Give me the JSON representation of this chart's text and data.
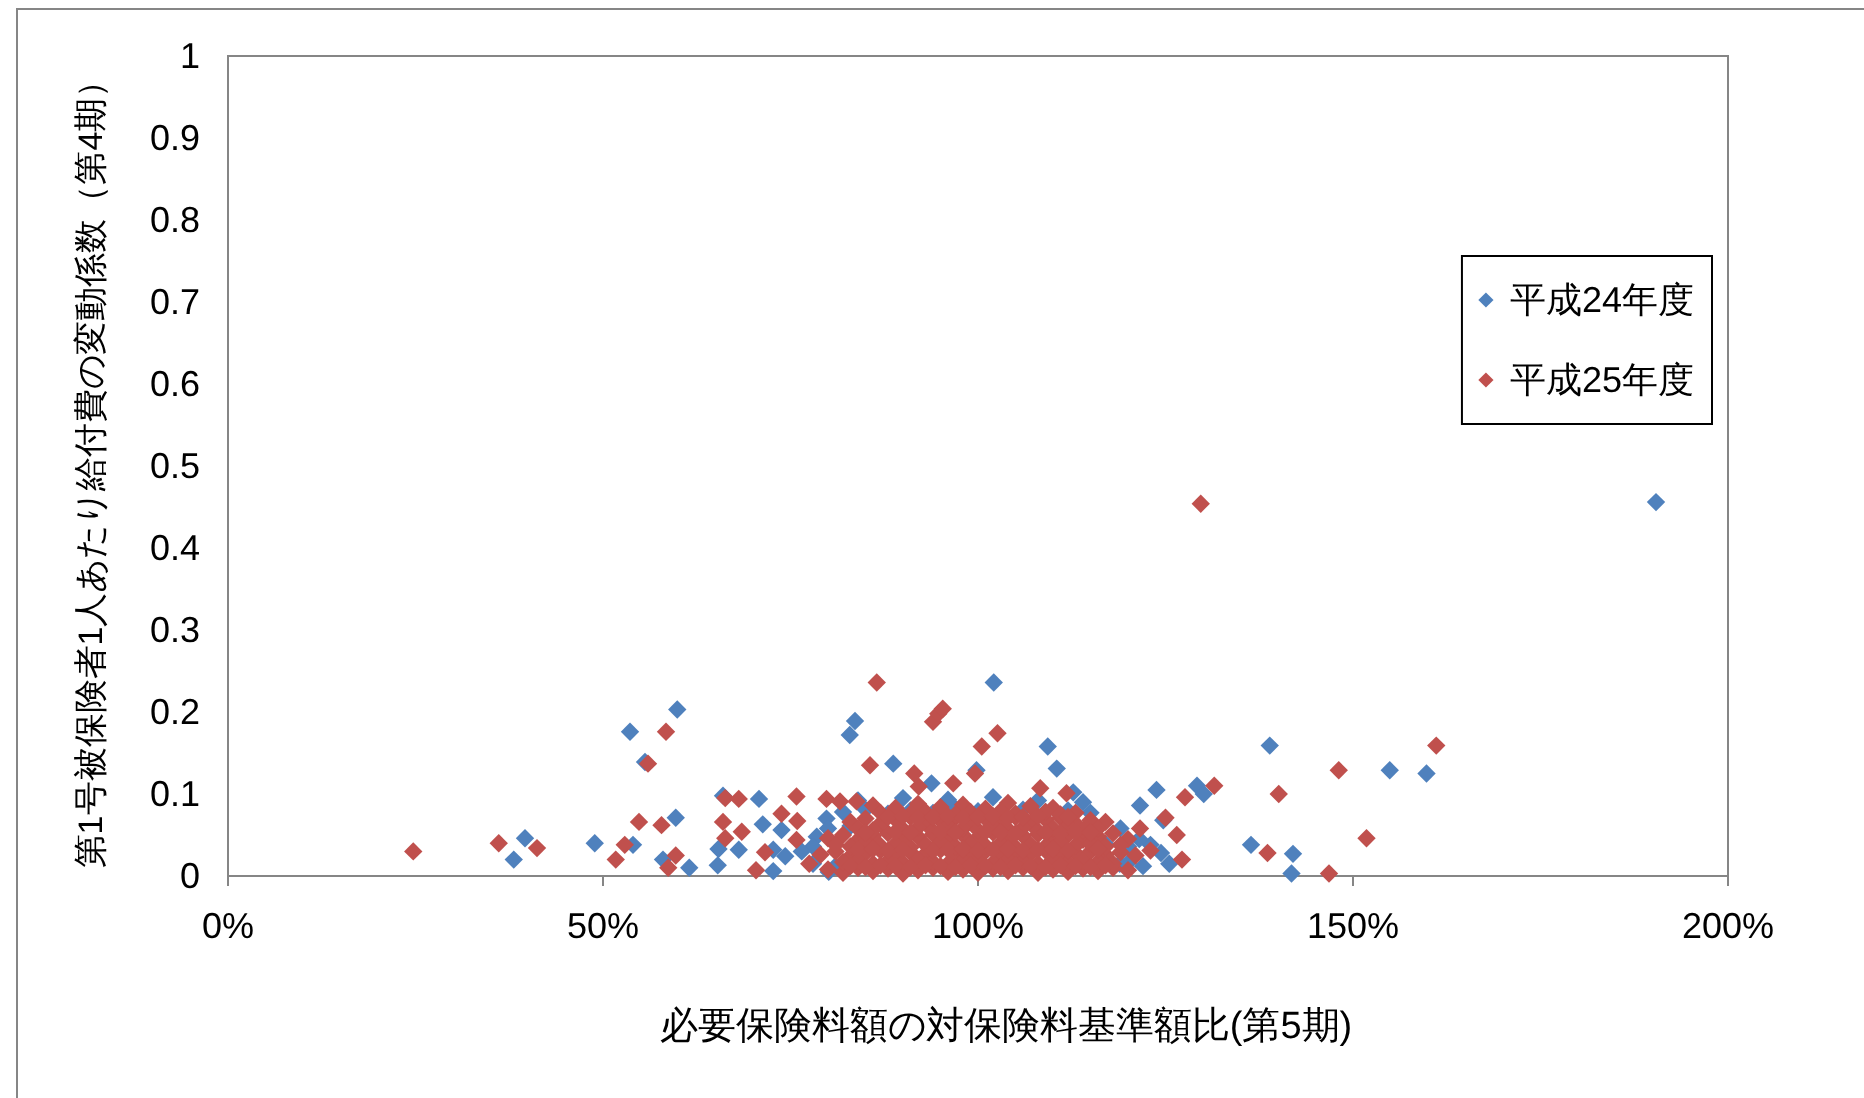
{
  "chart_data": {
    "type": "scatter",
    "xlabel": "必要保険料額の対保険料基準額比(第5期)",
    "ylabel": "第1号被保険者1人あたり給付費の変動係数（第4期）",
    "xlim": [
      0,
      200
    ],
    "xticks": [
      {
        "value": 0,
        "label": "0%"
      },
      {
        "value": 50,
        "label": "50%"
      },
      {
        "value": 100,
        "label": "100%"
      },
      {
        "value": 150,
        "label": "150%"
      },
      {
        "value": 200,
        "label": "200%"
      }
    ],
    "ylim": [
      0,
      1
    ],
    "yticks": [
      0,
      0.1,
      0.2,
      0.3,
      0.4,
      0.5,
      0.6,
      0.7,
      0.8,
      0.9,
      1
    ],
    "legend": "right",
    "marker": "diamond",
    "series": [
      {
        "name": "平成24年度",
        "color": "#4f81bd",
        "x": [
          38.1,
          39.6,
          48.9,
          53.6,
          54,
          55.6,
          58,
          59.7,
          59.9,
          61.5,
          65.3,
          65.4,
          66,
          68.1,
          70.8,
          71.3,
          72.7,
          72.7,
          73.8,
          74.3,
          78.5,
          79.8,
          80.1,
          82.9,
          83.6,
          88.7,
          93.8,
          99.8,
          102.1,
          109.3,
          110.5,
          112.7,
          118.9,
          121.6,
          123.8,
          124.4,
          124.7,
          129.2,
          130.1,
          136.4,
          138.9,
          142,
          141.8,
          154.9,
          159.8,
          190.4,
          78,
          81,
          120,
          122,
          78,
          117,
          120,
          123,
          80,
          83,
          119,
          82,
          85,
          88,
          91,
          94,
          97,
          100,
          106,
          109,
          112,
          115,
          84,
          90,
          96,
          102,
          108,
          114,
          76.5,
          121.5,
          125.5
        ],
        "values": [
          0.02,
          0.046,
          0.04,
          0.176,
          0.038,
          0.139,
          0.02,
          0.071,
          0.203,
          0.01,
          0.013,
          0.033,
          0.098,
          0.032,
          0.094,
          0.063,
          0.032,
          0.006,
          0.056,
          0.024,
          0.048,
          0.07,
          0.005,
          0.172,
          0.189,
          0.137,
          0.113,
          0.129,
          0.236,
          0.158,
          0.131,
          0.102,
          0.015,
          0.086,
          0.105,
          0.028,
          0.068,
          0.11,
          0.1,
          0.038,
          0.159,
          0.027,
          0.003,
          0.129,
          0.125,
          0.456,
          0.015,
          0.012,
          0.016,
          0.012,
          0.036,
          0.039,
          0.036,
          0.038,
          0.058,
          0.061,
          0.058,
          0.078,
          0.081,
          0.076,
          0.08,
          0.077,
          0.082,
          0.079,
          0.081,
          0.078,
          0.08,
          0.077,
          0.092,
          0.095,
          0.093,
          0.096,
          0.092,
          0.09,
          0.03,
          0.045,
          0.015
        ]
      },
      {
        "name": "平成25年度",
        "color": "#c0504d",
        "x": [
          24.7,
          36.1,
          41.2,
          51.7,
          52.9,
          54.8,
          56,
          57.8,
          58.4,
          58.7,
          59.7,
          66.3,
          66,
          66.3,
          68.1,
          68.5,
          70.4,
          71.6,
          73.8,
          75.8,
          75.9,
          75.8,
          77.5,
          79.8,
          81.6,
          83.8,
          85.6,
          86.5,
          91.5,
          92.1,
          94,
          94.7,
          95.3,
          96.7,
          99.6,
          100.5,
          102.6,
          108.3,
          111.8,
          121.6,
          125,
          126.5,
          127.2,
          127.6,
          131.5,
          129.7,
          138.6,
          140.1,
          146.8,
          148.1,
          151.8,
          161.1,
          80,
          82,
          84,
          86,
          88,
          90,
          92,
          94,
          96,
          98,
          100,
          102,
          104,
          106,
          108,
          110,
          112,
          114,
          116,
          118,
          120,
          79,
          81,
          83,
          85,
          87,
          89,
          91,
          93,
          95,
          97,
          99,
          101,
          103,
          105,
          107,
          109,
          111,
          113,
          115,
          117,
          119,
          121,
          123,
          80,
          82,
          84,
          86,
          88,
          90,
          92,
          94,
          96,
          98,
          100,
          102,
          104,
          106,
          108,
          110,
          112,
          114,
          116,
          118,
          120,
          83,
          85,
          87,
          89,
          91,
          93,
          95,
          97,
          99,
          101,
          103,
          105,
          107,
          109,
          111,
          113,
          115,
          117,
          86,
          89,
          92,
          95,
          98,
          101,
          104,
          107,
          110,
          82,
          84,
          86,
          88,
          90,
          92,
          94,
          96,
          98,
          100,
          102,
          104,
          106,
          108,
          110,
          112,
          114,
          116,
          118,
          81,
          83,
          85,
          87,
          89,
          91,
          93,
          95,
          97,
          99,
          101,
          103,
          105,
          107,
          109,
          111,
          113,
          115,
          117,
          119,
          84,
          86,
          90,
          92,
          94,
          96,
          98,
          100,
          102,
          104,
          106,
          108,
          110,
          112,
          114,
          116,
          87,
          91,
          93,
          97,
          99,
          103,
          105,
          109,
          111,
          113,
          83,
          85,
          87,
          89,
          91,
          93,
          95,
          97,
          99,
          101,
          103,
          105,
          107,
          109,
          111,
          113,
          115,
          117,
          84,
          86,
          88,
          90,
          94,
          96,
          98,
          100,
          102,
          104,
          106,
          108,
          110,
          112,
          116,
          85,
          89,
          91,
          95,
          97,
          101,
          103,
          105,
          109,
          111,
          113,
          115,
          88,
          90,
          92,
          94,
          96,
          98,
          100,
          102,
          104,
          106,
          108,
          112
        ],
        "values": [
          0.03,
          0.04,
          0.034,
          0.02,
          0.038,
          0.066,
          0.137,
          0.062,
          0.176,
          0.01,
          0.025,
          0.095,
          0.066,
          0.046,
          0.094,
          0.054,
          0.007,
          0.029,
          0.076,
          0.097,
          0.067,
          0.044,
          0.015,
          0.094,
          0.091,
          0.091,
          0.135,
          0.236,
          0.125,
          0.109,
          0.188,
          0.198,
          0.204,
          0.113,
          0.125,
          0.158,
          0.174,
          0.107,
          0.101,
          0.058,
          0.071,
          0.05,
          0.02,
          0.096,
          0.11,
          0.454,
          0.028,
          0.1,
          0.003,
          0.129,
          0.046,
          0.159,
          0.008,
          0.004,
          0.01,
          0.006,
          0.009,
          0.003,
          0.007,
          0.01,
          0.005,
          0.008,
          0.004,
          0.009,
          0.006,
          0.01,
          0.004,
          0.008,
          0.005,
          0.009,
          0.006,
          0.01,
          0.007,
          0.026,
          0.03,
          0.024,
          0.028,
          0.031,
          0.025,
          0.029,
          0.027,
          0.032,
          0.024,
          0.028,
          0.03,
          0.025,
          0.029,
          0.027,
          0.031,
          0.024,
          0.028,
          0.03,
          0.026,
          0.029,
          0.025,
          0.031,
          0.046,
          0.05,
          0.044,
          0.049,
          0.052,
          0.045,
          0.048,
          0.051,
          0.046,
          0.05,
          0.047,
          0.053,
          0.045,
          0.049,
          0.051,
          0.046,
          0.05,
          0.044,
          0.048,
          0.052,
          0.045,
          0.066,
          0.07,
          0.064,
          0.069,
          0.072,
          0.065,
          0.068,
          0.071,
          0.066,
          0.07,
          0.067,
          0.072,
          0.065,
          0.069,
          0.071,
          0.064,
          0.068,
          0.066,
          0.086,
          0.083,
          0.088,
          0.084,
          0.087,
          0.082,
          0.089,
          0.085,
          0.083,
          0.017,
          0.019,
          0.015,
          0.018,
          0.016,
          0.02,
          0.017,
          0.015,
          0.019,
          0.018,
          0.016,
          0.02,
          0.017,
          0.015,
          0.019,
          0.016,
          0.018,
          0.017,
          0.015,
          0.038,
          0.036,
          0.04,
          0.037,
          0.039,
          0.035,
          0.038,
          0.041,
          0.036,
          0.039,
          0.037,
          0.04,
          0.035,
          0.038,
          0.036,
          0.041,
          0.037,
          0.039,
          0.036,
          0.038,
          0.058,
          0.056,
          0.057,
          0.059,
          0.055,
          0.061,
          0.058,
          0.056,
          0.06,
          0.057,
          0.059,
          0.055,
          0.058,
          0.061,
          0.056,
          0.058,
          0.077,
          0.076,
          0.078,
          0.075,
          0.078,
          0.079,
          0.076,
          0.078,
          0.075,
          0.077,
          0.012,
          0.011,
          0.013,
          0.012,
          0.011,
          0.013,
          0.012,
          0.011,
          0.013,
          0.012,
          0.011,
          0.013,
          0.012,
          0.011,
          0.013,
          0.012,
          0.011,
          0.013,
          0.032,
          0.033,
          0.031,
          0.032,
          0.031,
          0.032,
          0.033,
          0.031,
          0.032,
          0.033,
          0.031,
          0.032,
          0.033,
          0.031,
          0.033,
          0.053,
          0.054,
          0.053,
          0.054,
          0.053,
          0.054,
          0.053,
          0.052,
          0.053,
          0.052,
          0.054,
          0.053,
          0.072,
          0.073,
          0.071,
          0.072,
          0.073,
          0.071,
          0.072,
          0.073,
          0.071,
          0.072,
          0.073,
          0.072
        ]
      }
    ]
  }
}
